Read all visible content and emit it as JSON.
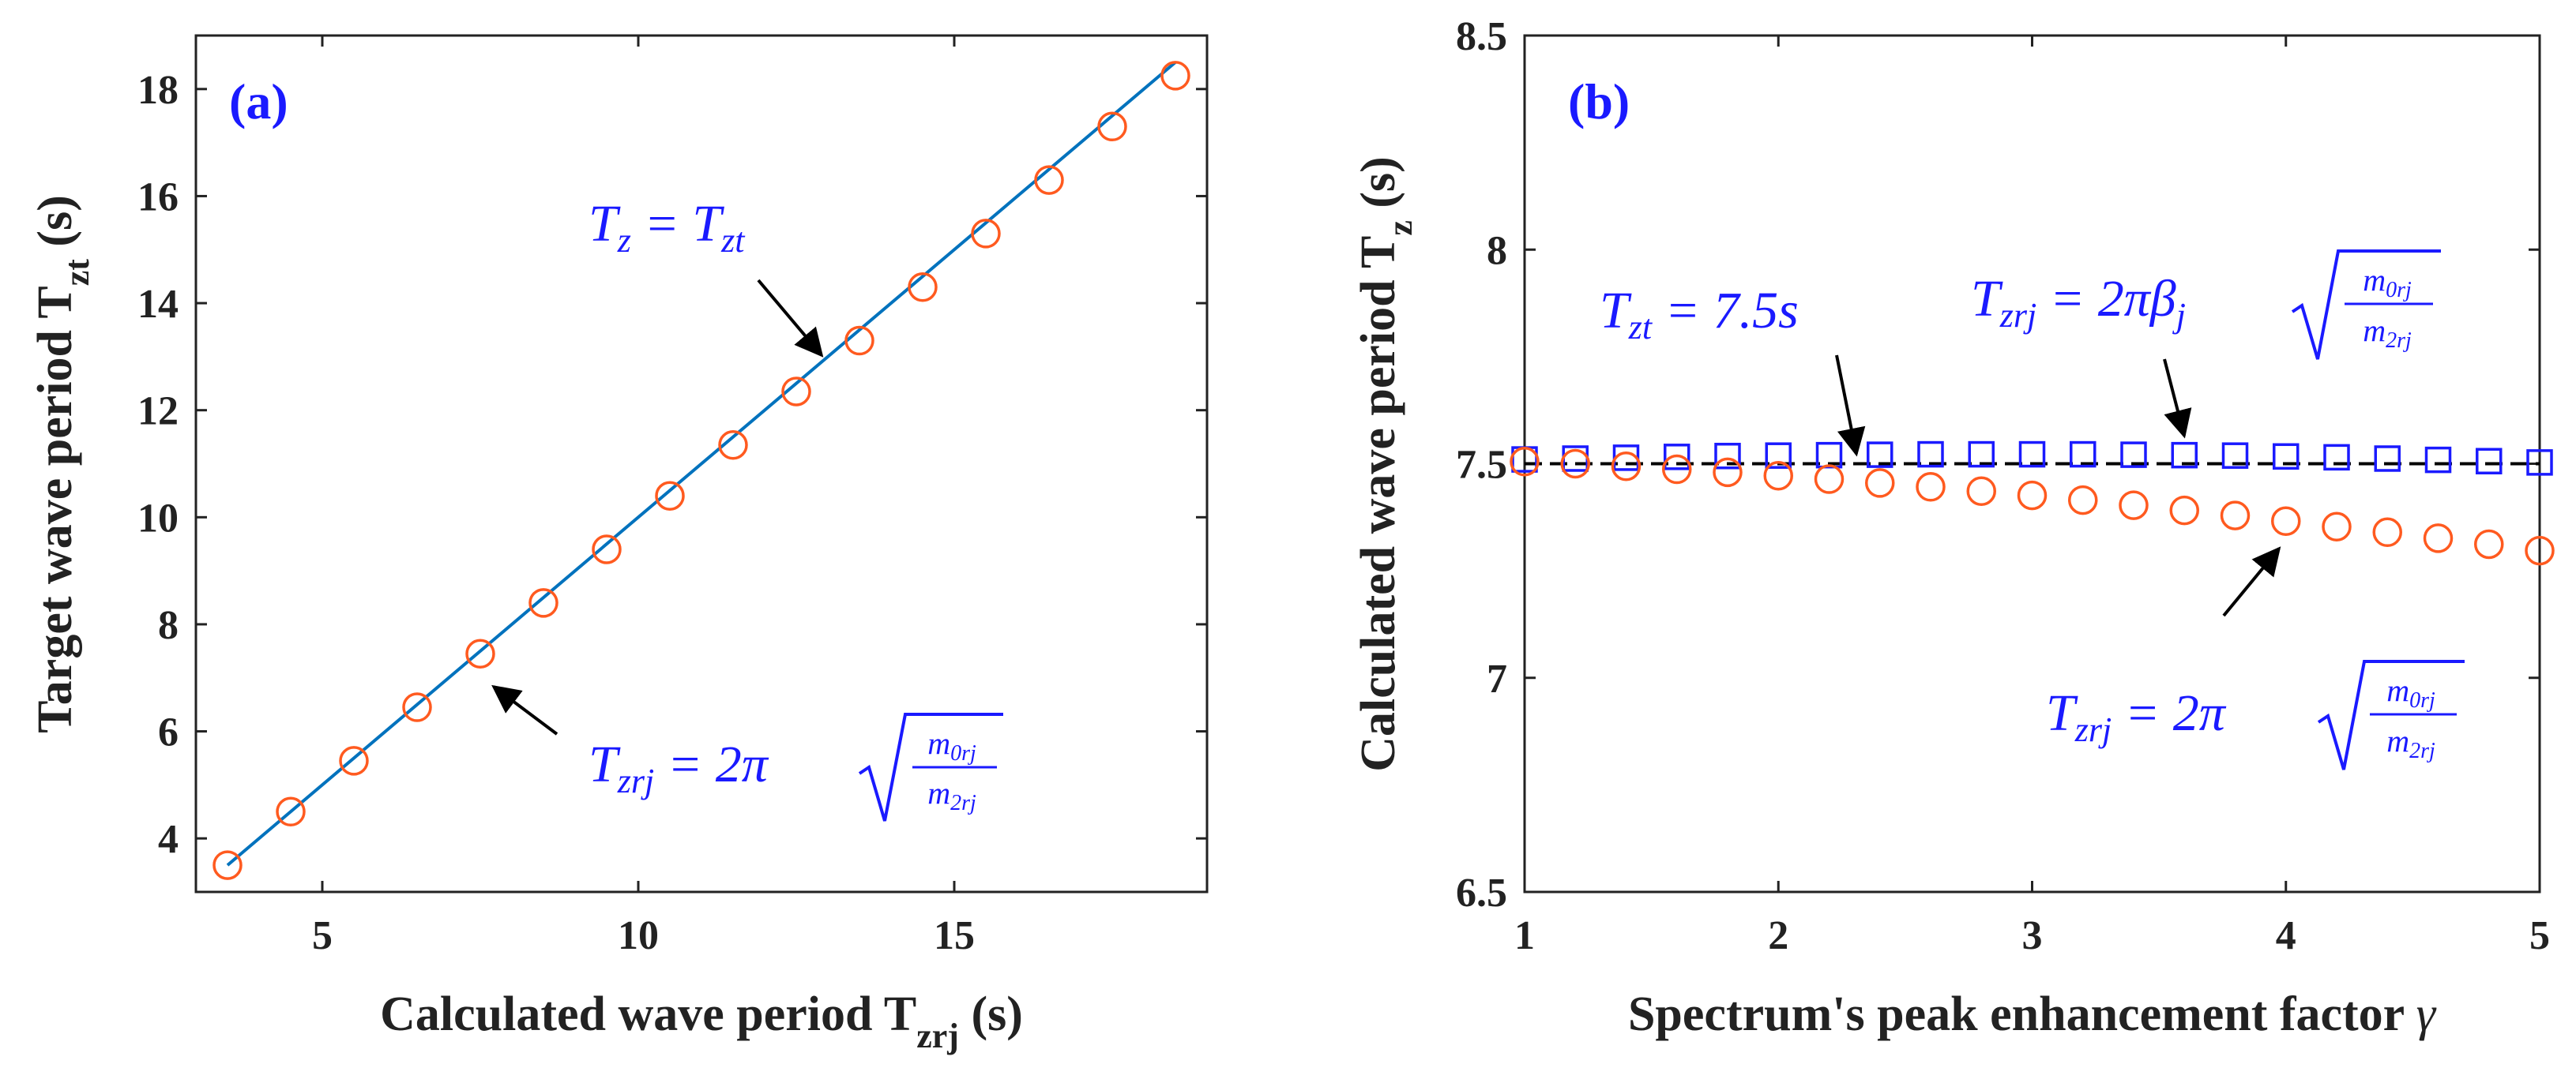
{
  "colors": {
    "axis": "#222222",
    "fit_line": "#0072bd",
    "circle_marker": "#ff5a1f",
    "square_marker": "#1a1aff",
    "target_line": "#000000",
    "annotation_text": "#1a1aff",
    "arrow": "#000000"
  },
  "chart_data": [
    {
      "type": "scatter",
      "panel_label": "(a)",
      "xlabel": "Calculated wave period T",
      "xlabel_sub": "zrj",
      "xlabel_unit": " (s)",
      "ylabel": "Target wave period T",
      "ylabel_sub": "zt",
      "ylabel_unit": " (s)",
      "xlim": [
        3,
        19
      ],
      "ylim": [
        3,
        19
      ],
      "xticks": [
        5,
        10,
        15
      ],
      "yticks": [
        4,
        6,
        8,
        10,
        12,
        14,
        16,
        18
      ],
      "series": [
        {
          "marker": "circle",
          "x": [
            3.5,
            4.5,
            5.5,
            6.5,
            7.5,
            8.5,
            9.5,
            10.5,
            11.5,
            12.5,
            13.5,
            14.5,
            15.5,
            16.5,
            17.5,
            18.5
          ],
          "y": [
            3.5,
            4.5,
            5.45,
            6.45,
            7.45,
            8.4,
            9.4,
            10.4,
            11.35,
            12.35,
            13.3,
            14.3,
            15.3,
            16.3,
            17.3,
            18.25
          ]
        },
        {
          "marker": "line",
          "x": [
            3.5,
            18.5
          ],
          "y": [
            3.5,
            18.5
          ]
        }
      ],
      "annotations": {
        "line_label": {
          "lhs": "T",
          "lhs_sub": "z",
          "eq": " = ",
          "rhs": "T",
          "rhs_sub": "zt",
          "point": [
            13.0,
            13.0
          ]
        },
        "marker_label": {
          "lhs": "T",
          "lhs_sub": "zrj",
          "eq": " = 2π",
          "num": "m",
          "num_sub": "0rj",
          "den": "m",
          "den_sub": "2rj",
          "point": [
            7.6,
            7.6
          ]
        }
      }
    },
    {
      "type": "scatter",
      "panel_label": "(b)",
      "xlabel": "Spectrum's peak enhancement factor ",
      "xlabel_symbol": "γ",
      "ylabel": "Calculated wave period T",
      "ylabel_sub": "z",
      "ylabel_unit": " (s)",
      "xlim": [
        1,
        5
      ],
      "ylim": [
        6.5,
        8.5
      ],
      "xticks": [
        1,
        2,
        3,
        4,
        5
      ],
      "yticks": [
        6.5,
        7,
        7.5,
        8,
        8.5
      ],
      "ytick_labels": [
        "6.5",
        "7",
        "7.5",
        "8",
        "8.5"
      ],
      "series": [
        {
          "marker": "square",
          "x": [
            1.0,
            1.2,
            1.4,
            1.6,
            1.8,
            2.0,
            2.2,
            2.4,
            2.6,
            2.8,
            3.0,
            3.2,
            3.4,
            3.6,
            3.8,
            4.0,
            4.2,
            4.4,
            4.6,
            4.8,
            5.0
          ],
          "y": [
            7.51,
            7.512,
            7.514,
            7.516,
            7.518,
            7.519,
            7.52,
            7.521,
            7.522,
            7.522,
            7.522,
            7.522,
            7.521,
            7.52,
            7.519,
            7.517,
            7.515,
            7.512,
            7.509,
            7.506,
            7.503
          ]
        },
        {
          "marker": "circle",
          "x": [
            1.0,
            1.2,
            1.4,
            1.6,
            1.8,
            2.0,
            2.2,
            2.4,
            2.6,
            2.8,
            3.0,
            3.2,
            3.4,
            3.6,
            3.8,
            4.0,
            4.2,
            4.4,
            4.6,
            4.8,
            5.0
          ],
          "y": [
            7.505,
            7.5,
            7.494,
            7.487,
            7.48,
            7.472,
            7.464,
            7.455,
            7.446,
            7.436,
            7.426,
            7.415,
            7.403,
            7.391,
            7.379,
            7.366,
            7.353,
            7.34,
            7.326,
            7.312,
            7.297
          ]
        },
        {
          "marker": "dashed-line",
          "x": [
            1.0,
            5.0
          ],
          "y": [
            7.5,
            7.5
          ]
        }
      ],
      "annotations": {
        "target_label": {
          "lhs": "T",
          "lhs_sub": "zt",
          "eq": " = 7.5",
          "unit": "s",
          "point": [
            2.3,
            7.5
          ]
        },
        "square_label": {
          "lhs": "T",
          "lhs_sub": "zrj",
          "eq": " = 2πβ",
          "eq_sub": "j",
          "num": "m",
          "num_sub": "0rj",
          "den": "m",
          "den_sub": "2rj",
          "point": [
            3.6,
            7.52
          ]
        },
        "circle_label": {
          "lhs": "T",
          "lhs_sub": "zrj",
          "eq": " = 2π",
          "num": "m",
          "num_sub": "0rj",
          "den": "m",
          "den_sub": "2rj",
          "point": [
            3.98,
            7.37
          ]
        }
      }
    }
  ]
}
